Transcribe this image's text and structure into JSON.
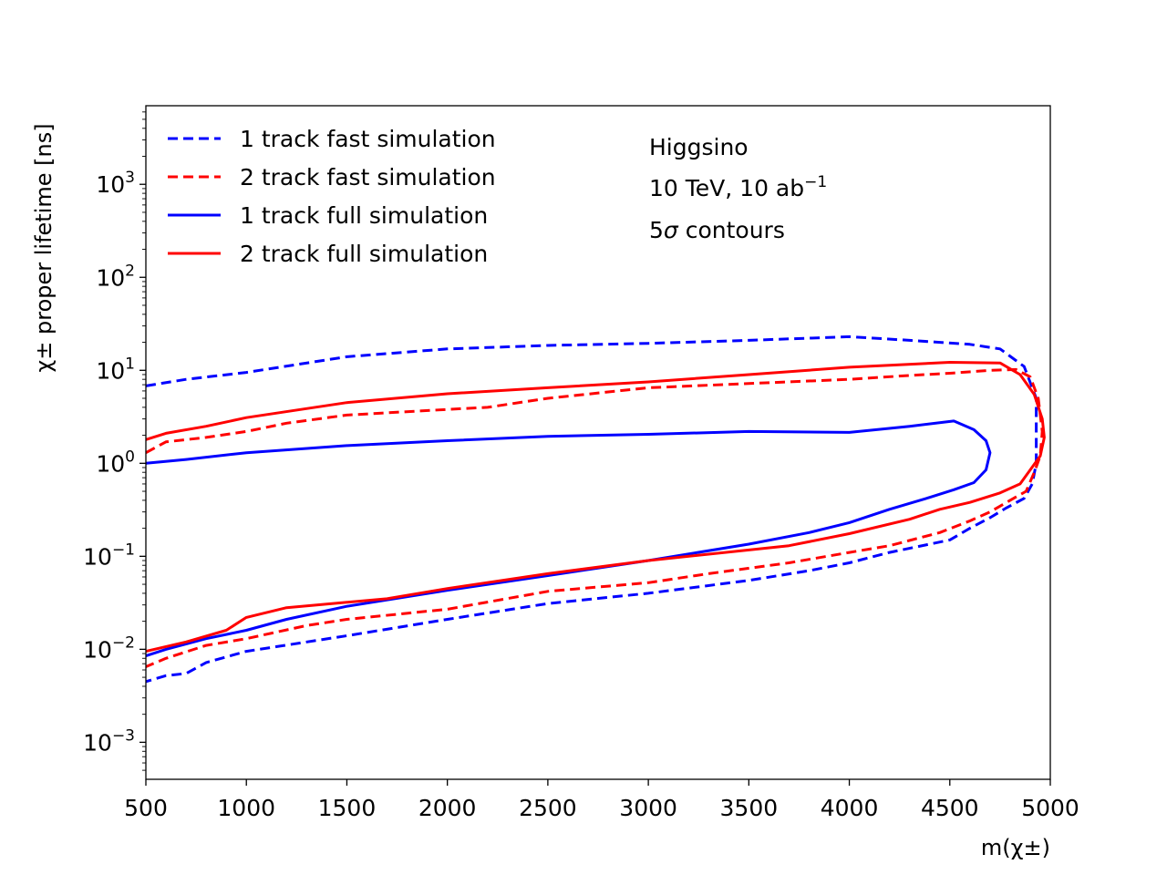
{
  "chart_data": {
    "type": "line",
    "title": "",
    "xlabel": "m(χ±)",
    "ylabel": "χ± proper lifetime [ns]",
    "xscale": "linear",
    "yscale": "log",
    "xlim": [
      500,
      5000
    ],
    "ylim": [
      0.0004,
      7000
    ],
    "grid": false,
    "legend_position": "top-left",
    "x_ticks": [
      500,
      1000,
      1500,
      2000,
      2500,
      3000,
      3500,
      4000,
      4500,
      5000
    ],
    "x_tick_labels": [
      "500",
      "1000",
      "1500",
      "2000",
      "2500",
      "3000",
      "3500",
      "4000",
      "4500",
      "5000"
    ],
    "y_ticks": [
      {
        "value": 0.001,
        "base": "10",
        "exp": "−3"
      },
      {
        "value": 0.01,
        "base": "10",
        "exp": "−2"
      },
      {
        "value": 0.1,
        "base": "10",
        "exp": "−1"
      },
      {
        "value": 1,
        "base": "10",
        "exp": "0"
      },
      {
        "value": 10,
        "base": "10",
        "exp": "1"
      },
      {
        "value": 100,
        "base": "10",
        "exp": "2"
      },
      {
        "value": 1000,
        "base": "10",
        "exp": "3"
      }
    ],
    "annotation": {
      "line1": "Higgsino",
      "line2_prefix": "10 TeV, 10 ab",
      "line2_sup": "−1",
      "line3_prefix": "5",
      "line3_sigma": "σ",
      "line3_suffix": " contours"
    },
    "series": [
      {
        "name": "1 track fast simulation",
        "color": "#0000ff",
        "style": "dashed",
        "x": [
          500,
          700,
          1000,
          1500,
          2000,
          2500,
          3000,
          3500,
          4000,
          4300,
          4600,
          4750,
          4870,
          4930,
          4930,
          4910,
          4870,
          4780,
          4700,
          4600,
          4500,
          4200,
          4000,
          3800,
          3500,
          3000,
          2500,
          2000,
          1500,
          1000,
          800,
          700,
          600,
          500
        ],
        "y": [
          6.8,
          8.0,
          9.5,
          14,
          17,
          18.5,
          19.5,
          21,
          23,
          21,
          19,
          17,
          11,
          5.0,
          1.0,
          0.6,
          0.42,
          0.33,
          0.26,
          0.2,
          0.15,
          0.11,
          0.085,
          0.07,
          0.055,
          0.04,
          0.031,
          0.021,
          0.014,
          0.0095,
          0.0072,
          0.0055,
          0.0052,
          0.0045
        ]
      },
      {
        "name": "2 track fast simulation",
        "color": "#ff0000",
        "style": "dashed",
        "x": [
          500,
          600,
          800,
          1000,
          1200,
          1500,
          2000,
          2200,
          2500,
          3000,
          3500,
          4000,
          4300,
          4500,
          4700,
          4830,
          4900,
          4940,
          4960,
          4950,
          4920,
          4880,
          4800,
          4700,
          4600,
          4450,
          4200,
          4000,
          3700,
          3300,
          3000,
          2500,
          2000,
          1500,
          1300,
          1000,
          800,
          600,
          500
        ],
        "y": [
          1.3,
          1.7,
          1.9,
          2.2,
          2.7,
          3.3,
          3.8,
          4.0,
          5.0,
          6.5,
          7.2,
          8.0,
          8.8,
          9.3,
          10.0,
          10.2,
          8.5,
          5.0,
          2.2,
          1.2,
          0.8,
          0.5,
          0.4,
          0.3,
          0.24,
          0.18,
          0.13,
          0.11,
          0.085,
          0.065,
          0.052,
          0.042,
          0.027,
          0.021,
          0.018,
          0.013,
          0.011,
          0.008,
          0.0065
        ]
      },
      {
        "name": "1 track full simulation",
        "color": "#0000ff",
        "style": "solid",
        "x": [
          500,
          700,
          1000,
          1500,
          2000,
          2500,
          3000,
          3500,
          4000,
          4300,
          4520,
          4620,
          4680,
          4700,
          4680,
          4620,
          4520,
          4400,
          4200,
          4000,
          3800,
          3500,
          3000,
          2500,
          2000,
          1500,
          1200,
          1000,
          800,
          600,
          500
        ],
        "y": [
          1.0,
          1.1,
          1.3,
          1.55,
          1.75,
          1.95,
          2.05,
          2.2,
          2.15,
          2.5,
          2.85,
          2.3,
          1.75,
          1.3,
          0.85,
          0.62,
          0.52,
          0.43,
          0.32,
          0.23,
          0.18,
          0.135,
          0.09,
          0.062,
          0.043,
          0.029,
          0.021,
          0.016,
          0.013,
          0.01,
          0.0085
        ]
      },
      {
        "name": "2 track full simulation",
        "color": "#ff0000",
        "style": "solid",
        "x": [
          500,
          600,
          800,
          1000,
          1500,
          2000,
          2500,
          3000,
          3500,
          4000,
          4500,
          4750,
          4850,
          4920,
          4960,
          4970,
          4950,
          4900,
          4850,
          4750,
          4600,
          4450,
          4300,
          4000,
          3700,
          3000,
          2500,
          2000,
          1700,
          1200,
          1000,
          900,
          700,
          500
        ],
        "y": [
          1.8,
          2.1,
          2.5,
          3.1,
          4.5,
          5.6,
          6.5,
          7.5,
          9.0,
          10.8,
          12.2,
          12.0,
          9.0,
          5.5,
          3.0,
          1.9,
          1.2,
          0.85,
          0.6,
          0.48,
          0.38,
          0.32,
          0.25,
          0.175,
          0.13,
          0.09,
          0.065,
          0.045,
          0.035,
          0.028,
          0.022,
          0.016,
          0.012,
          0.0095
        ]
      }
    ]
  }
}
